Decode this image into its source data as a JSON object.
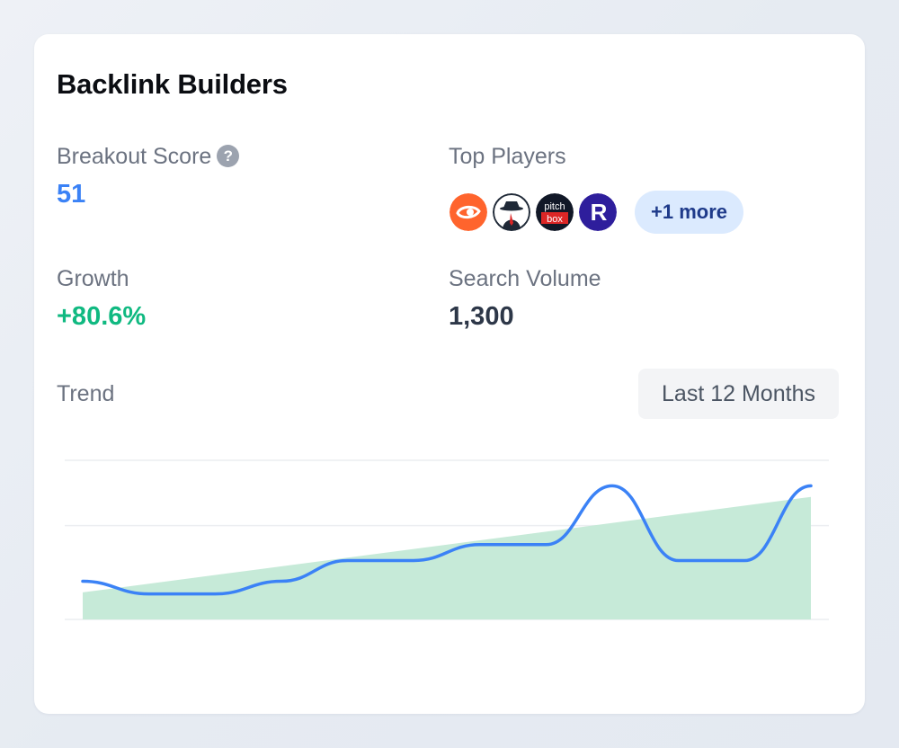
{
  "card": {
    "title": "Backlink Builders"
  },
  "metrics": {
    "breakout_score": {
      "label": "Breakout Score",
      "value": "51",
      "color": "#3b82f6"
    },
    "top_players": {
      "label": "Top Players",
      "players": [
        {
          "name": "semrush-icon",
          "bg": "#ff642d"
        },
        {
          "name": "spy-icon",
          "bg": "#1f2937"
        },
        {
          "name": "pitchbox-icon",
          "bg": "#111827",
          "text_top": "pitch",
          "text_bottom": "box"
        },
        {
          "name": "respona-icon",
          "bg": "#2e1e9c",
          "text": "R"
        }
      ],
      "more_label": "+1 more"
    },
    "growth": {
      "label": "Growth",
      "value": "+80.6%",
      "color": "#10b981"
    },
    "search_volume": {
      "label": "Search Volume",
      "value": "1,300",
      "color": "#2d3748"
    }
  },
  "trend": {
    "label": "Trend",
    "range_button": "Last 12 Months"
  },
  "chart_data": {
    "type": "line",
    "x": [
      0,
      1,
      2,
      3,
      4,
      5,
      6,
      7,
      8,
      9,
      10,
      11
    ],
    "series": [
      {
        "values": [
          24,
          16,
          16,
          24,
          37,
          37,
          47,
          47,
          84,
          37,
          37,
          84
        ],
        "color": "#3b82f6"
      }
    ],
    "trendline": {
      "start": 17,
      "end": 77,
      "color": "#c6ead8"
    },
    "ylim": [
      0,
      100
    ],
    "grid": true,
    "legend": "none"
  }
}
